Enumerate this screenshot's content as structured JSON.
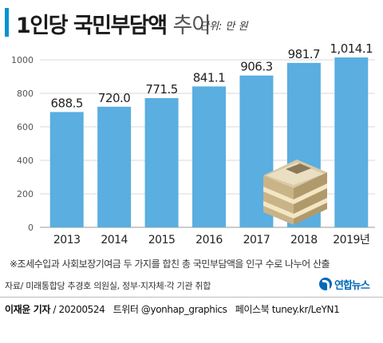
{
  "header": {
    "title": "1인당 국민부담액",
    "title_suffix": "추이",
    "unit": "단위: 만 원"
  },
  "chart_data": {
    "type": "bar",
    "categories": [
      "2013",
      "2014",
      "2015",
      "2016",
      "2017",
      "2018",
      "2019년"
    ],
    "values": [
      688.5,
      720.0,
      771.5,
      841.1,
      906.3,
      981.7,
      1014.1
    ],
    "value_labels": [
      "688.5",
      "720.0",
      "771.5",
      "841.1",
      "906.3",
      "981.7",
      "1,014.1"
    ],
    "yticks": [
      "0",
      "200",
      "400",
      "600",
      "800",
      "1000"
    ],
    "ylim": [
      0,
      1000
    ],
    "grid": true,
    "bar_color": "#5aaee0"
  },
  "note": "※조세수입과 사회보장기여금 두 가지를 합친 총 국민부담액을 인구 수로 나누어 산출",
  "source": "자료/ 미래통합당 추경호 의원실, 정부·지자체·각 기관 취합",
  "logo": "연합뉴스",
  "footer": {
    "author": "이재윤 기자",
    "date": "/ 20200524",
    "twitter": "트위터 @yonhap_graphics",
    "facebook": "페이스북 tuney.kr/LeYN1"
  }
}
